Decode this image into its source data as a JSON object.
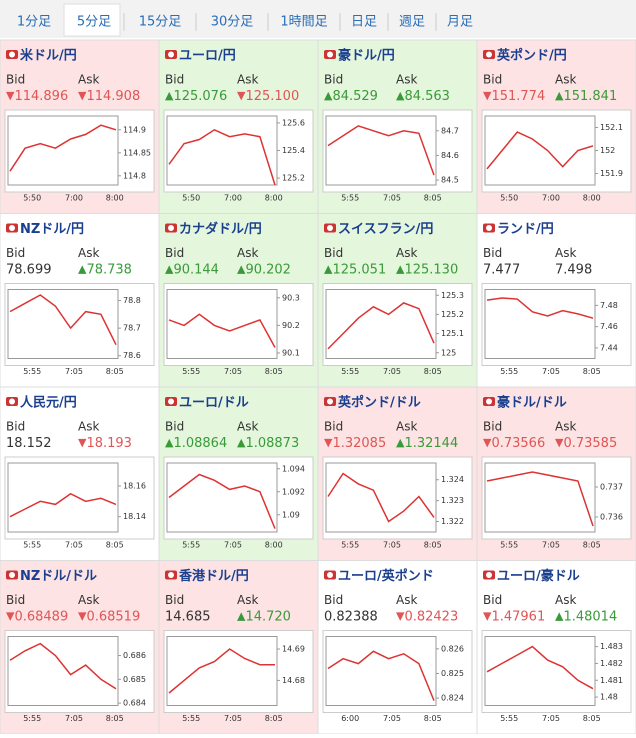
{
  "tabs": {
    "items": [
      "1分足",
      "5分足",
      "15分足",
      "30分足",
      "1時間足",
      "日足",
      "週足",
      "月足"
    ],
    "active": 1
  },
  "tiles": [
    {
      "name": "米ドル/円",
      "background": "#fde3e3",
      "bid_label": "Bid",
      "ask_label": "Ask",
      "bid": "114.896",
      "bid_arrow": "▼",
      "bid_color": "#e05555",
      "ask": "114.908",
      "ask_arrow": "▼",
      "ask_color": "#e05555",
      "ylim": [
        114.78,
        114.93
      ],
      "yticks": [
        114.9,
        114.85,
        114.8
      ],
      "xlabels": [
        "5:50",
        "7:00",
        "8:00"
      ],
      "closes": [
        114.81,
        114.86,
        114.87,
        114.86,
        114.88,
        114.89,
        114.91,
        114.9
      ]
    },
    {
      "name": "ユーロ/円",
      "background": "#e4f6dc",
      "bid_label": "Bid",
      "ask_label": "Ask",
      "bid": "125.076",
      "bid_arrow": "▲",
      "bid_color": "#3a9a3a",
      "ask": "125.100",
      "ask_arrow": "▼",
      "ask_color": "#e05555",
      "ylim": [
        125.15,
        125.65
      ],
      "yticks": [
        125.6,
        125.4,
        125.2
      ],
      "xlabels": [
        "5:50",
        "7:00",
        "8:00"
      ],
      "closes": [
        125.3,
        125.45,
        125.48,
        125.55,
        125.5,
        125.52,
        125.5,
        125.15
      ]
    },
    {
      "name": "豪ドル/円",
      "background": "#e4f6dc",
      "bid_label": "Bid",
      "ask_label": "Ask",
      "bid": "84.529",
      "bid_arrow": "▲",
      "bid_color": "#3a9a3a",
      "ask": "84.563",
      "ask_arrow": "▲",
      "ask_color": "#3a9a3a",
      "ylim": [
        84.48,
        84.76
      ],
      "yticks": [
        84.7,
        84.6,
        84.5
      ],
      "xlabels": [
        "5:55",
        "7:05",
        "8:05"
      ],
      "closes": [
        84.64,
        84.68,
        84.72,
        84.7,
        84.68,
        84.7,
        84.69,
        84.52
      ]
    },
    {
      "name": "英ポンド/円",
      "background": "#fde3e3",
      "bid_label": "Bid",
      "ask_label": "Ask",
      "bid": "151.774",
      "bid_arrow": "▼",
      "bid_color": "#e05555",
      "ask": "151.841",
      "ask_arrow": "▲",
      "ask_color": "#3a9a3a",
      "ylim": [
        151.85,
        152.15
      ],
      "yticks": [
        152.1,
        152,
        151.9
      ],
      "xlabels": [
        "5:50",
        "7:00",
        "8:00"
      ],
      "closes": [
        151.92,
        152.0,
        152.08,
        152.05,
        152.0,
        151.93,
        152.0,
        152.02
      ]
    },
    {
      "name": "NZドル/円",
      "background": "#ffffff",
      "bid_label": "Bid",
      "ask_label": "Ask",
      "bid": "78.699",
      "ask": "78.738",
      "ask_arrow": "▲",
      "ask_color": "#3a9a3a",
      "ylim": [
        78.59,
        78.84
      ],
      "yticks": [
        78.8,
        78.7,
        78.6
      ],
      "xlabels": [
        "5:55",
        "7:05",
        "8:05"
      ],
      "closes": [
        78.76,
        78.79,
        78.82,
        78.78,
        78.7,
        78.76,
        78.75,
        78.64
      ]
    },
    {
      "name": "カナダドル/円",
      "background": "#e4f6dc",
      "bid_label": "Bid",
      "ask_label": "Ask",
      "bid": "90.144",
      "bid_arrow": "▲",
      "bid_color": "#3a9a3a",
      "ask": "90.202",
      "ask_arrow": "▲",
      "ask_color": "#3a9a3a",
      "ylim": [
        90.08,
        90.33
      ],
      "yticks": [
        90.3,
        90.2,
        90.1
      ],
      "xlabels": [
        "5:55",
        "7:05",
        "8:05"
      ],
      "closes": [
        90.22,
        90.2,
        90.24,
        90.2,
        90.18,
        90.2,
        90.22,
        90.12
      ]
    },
    {
      "name": "スイスフラン/円",
      "background": "#e4f6dc",
      "bid_label": "Bid",
      "ask_label": "Ask",
      "bid": "125.051",
      "bid_arrow": "▲",
      "bid_color": "#3a9a3a",
      "ask": "125.130",
      "ask_arrow": "▲",
      "ask_color": "#3a9a3a",
      "ylim": [
        124.97,
        125.33
      ],
      "yticks": [
        125.3,
        125.2,
        125.1,
        125
      ],
      "xlabels": [
        "5:55",
        "7:05",
        "8:05"
      ],
      "closes": [
        125.02,
        125.1,
        125.18,
        125.24,
        125.2,
        125.26,
        125.23,
        125.05
      ]
    },
    {
      "name": "ランド/円",
      "background": "#ffffff",
      "bid_label": "Bid",
      "ask_label": "Ask",
      "bid": "7.477",
      "ask": "7.498",
      "ylim": [
        7.43,
        7.495
      ],
      "yticks": [
        7.48,
        7.46,
        7.44
      ],
      "xlabels": [
        "5:55",
        "7:05",
        "8:05"
      ],
      "closes": [
        7.485,
        7.487,
        7.486,
        7.474,
        7.47,
        7.475,
        7.472,
        7.468
      ]
    },
    {
      "name": "人民元/円",
      "background": "#ffffff",
      "bid_label": "Bid",
      "ask_label": "Ask",
      "bid": "18.152",
      "ask": "18.193",
      "ask_arrow": "▼",
      "ask_color": "#e05555",
      "ylim": [
        18.13,
        18.175
      ],
      "yticks": [
        18.16,
        18.14
      ],
      "xlabels": [
        "5:55",
        "7:05",
        "8:05"
      ],
      "closes": [
        18.14,
        18.145,
        18.15,
        18.148,
        18.155,
        18.15,
        18.152,
        18.148
      ]
    },
    {
      "name": "ユーロ/ドル",
      "background": "#e4f6dc",
      "bid_label": "Bid",
      "ask_label": "Ask",
      "bid": "1.08864",
      "bid_arrow": "▲",
      "bid_color": "#3a9a3a",
      "ask": "1.08873",
      "ask_arrow": "▲",
      "ask_color": "#3a9a3a",
      "ylim": [
        1.0885,
        1.0945
      ],
      "yticks": [
        1.094,
        1.092,
        1.09
      ],
      "xlabels": [
        "5:55",
        "7:05",
        "8:00"
      ],
      "closes": [
        1.0915,
        1.0925,
        1.0935,
        1.093,
        1.0922,
        1.0925,
        1.092,
        1.0888
      ]
    },
    {
      "name": "英ポンド/ドル",
      "background": "#fde3e3",
      "bid_label": "Bid",
      "ask_label": "Ask",
      "bid": "1.32085",
      "bid_arrow": "▼",
      "bid_color": "#e05555",
      "ask": "1.32144",
      "ask_arrow": "▲",
      "ask_color": "#3a9a3a",
      "ylim": [
        1.3215,
        1.3248
      ],
      "yticks": [
        1.324,
        1.323,
        1.322
      ],
      "xlabels": [
        "5:55",
        "7:05",
        "8:05"
      ],
      "closes": [
        1.3232,
        1.3243,
        1.3238,
        1.3235,
        1.322,
        1.3225,
        1.3232,
        1.3222
      ]
    },
    {
      "name": "豪ドル/ドル",
      "background": "#fde3e3",
      "bid_label": "Bid",
      "ask_label": "Ask",
      "bid": "0.73566",
      "bid_arrow": "▼",
      "bid_color": "#e05555",
      "ask": "0.73585",
      "ask_arrow": "▼",
      "ask_color": "#e05555",
      "ylim": [
        0.7355,
        0.7378
      ],
      "yticks": [
        0.737,
        0.736
      ],
      "xlabels": [
        "5:55",
        "7:05",
        "8:05"
      ],
      "closes": [
        0.7372,
        0.7373,
        0.7374,
        0.7375,
        0.7374,
        0.7373,
        0.7372,
        0.7357
      ]
    },
    {
      "name": "NZドル/ドル",
      "background": "#fde3e3",
      "bid_label": "Bid",
      "ask_label": "Ask",
      "bid": "0.68489",
      "bid_arrow": "▼",
      "bid_color": "#e05555",
      "ask": "0.68519",
      "ask_arrow": "▼",
      "ask_color": "#e05555",
      "ylim": [
        0.6839,
        0.6868
      ],
      "yticks": [
        0.686,
        0.685,
        0.684
      ],
      "xlabels": [
        "5:55",
        "7:05",
        "8:05"
      ],
      "closes": [
        0.6858,
        0.6862,
        0.6865,
        0.686,
        0.6852,
        0.6856,
        0.685,
        0.6846
      ]
    },
    {
      "name": "香港ドル/円",
      "background": "#fde3e3",
      "bid_label": "Bid",
      "ask_label": "Ask",
      "bid": "14.685",
      "ask": "14.720",
      "ask_arrow": "▲",
      "ask_color": "#3a9a3a",
      "ylim": [
        14.672,
        14.694
      ],
      "yticks": [
        14.69,
        14.68
      ],
      "xlabels": [
        "5:55",
        "7:05",
        "8:05"
      ],
      "closes": [
        14.676,
        14.68,
        14.684,
        14.686,
        14.69,
        14.687,
        14.685,
        14.685
      ]
    },
    {
      "name": "ユーロ/英ポンド",
      "background": "#ffffff",
      "bid_label": "Bid",
      "ask_label": "Ask",
      "bid": "0.82388",
      "ask": "0.82423",
      "ask_arrow": "▼",
      "ask_color": "#e05555",
      "ylim": [
        0.8237,
        0.8265
      ],
      "yticks": [
        0.826,
        0.825,
        0.824
      ],
      "xlabels": [
        "6:00",
        "7:05",
        "8:05"
      ],
      "closes": [
        0.8252,
        0.8256,
        0.8254,
        0.8259,
        0.8256,
        0.8258,
        0.8254,
        0.8239
      ]
    },
    {
      "name": "ユーロ/豪ドル",
      "background": "#ffffff",
      "bid_label": "Bid",
      "ask_label": "Ask",
      "bid": "1.47961",
      "bid_arrow": "▼",
      "bid_color": "#e05555",
      "ask": "1.48014",
      "ask_arrow": "▲",
      "ask_color": "#3a9a3a",
      "ylim": [
        1.4795,
        1.4836
      ],
      "yticks": [
        1.483,
        1.482,
        1.481,
        1.48
      ],
      "xlabels": [
        "5:55",
        "7:05",
        "8:05"
      ],
      "closes": [
        1.4815,
        1.482,
        1.4825,
        1.483,
        1.4822,
        1.4818,
        1.481,
        1.4805
      ]
    }
  ]
}
